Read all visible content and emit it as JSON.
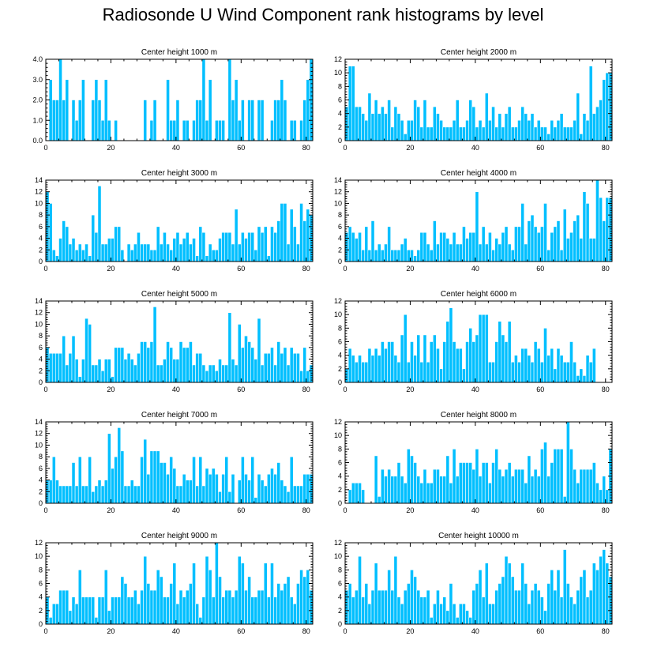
{
  "title": "Radiosonde U Wind Component rank histograms by level",
  "colors": {
    "bar": "#00bfff",
    "bar_edge": "#ffffff",
    "axis": "#000000",
    "background": "#ffffff"
  },
  "chart_data": [
    {
      "type": "bar",
      "title": "Center height 1000 m",
      "xlim": [
        0,
        82
      ],
      "ylim": [
        0,
        4
      ],
      "yticks": [
        0,
        1,
        2,
        3,
        4
      ],
      "ytick_labels": [
        "0.0",
        "1.0",
        "2.0",
        "3.0",
        "4.0"
      ],
      "xticks": [
        0,
        20,
        40,
        60,
        80
      ],
      "values": [
        0,
        3,
        2,
        2,
        4,
        2,
        3,
        0,
        2,
        1,
        2,
        3,
        0,
        0,
        2,
        3,
        2,
        1,
        3,
        1,
        0,
        1,
        0,
        0,
        0,
        0,
        0,
        0,
        0,
        0,
        2,
        0,
        1,
        2,
        0,
        0,
        0,
        3,
        1,
        1,
        2,
        0,
        1,
        1,
        0,
        1,
        2,
        2,
        4,
        1,
        3,
        0,
        1,
        1,
        1,
        0,
        4,
        2,
        3,
        1,
        2,
        0,
        2,
        2,
        0,
        2,
        2,
        0,
        0,
        1,
        2,
        2,
        3,
        2,
        0,
        1,
        1,
        0,
        1,
        2,
        3,
        4
      ]
    },
    {
      "type": "bar",
      "title": "Center height 2000 m",
      "xlim": [
        0,
        82
      ],
      "ylim": [
        0,
        12
      ],
      "yticks": [
        0,
        2,
        4,
        6,
        8,
        10,
        12
      ],
      "ytick_labels": [
        "0",
        "2",
        "4",
        "6",
        "8",
        "10",
        "12"
      ],
      "xticks": [
        0,
        20,
        40,
        60,
        80
      ],
      "values": [
        5,
        11,
        11,
        5,
        5,
        4,
        3,
        7,
        4,
        6,
        4,
        5,
        4,
        6,
        2,
        5,
        4,
        3,
        1,
        3,
        3,
        6,
        5,
        2,
        6,
        2,
        2,
        5,
        4,
        3,
        2,
        2,
        2,
        3,
        6,
        2,
        2,
        3,
        6,
        5,
        2,
        3,
        2,
        7,
        3,
        5,
        2,
        4,
        2,
        4,
        5,
        2,
        2,
        3,
        5,
        4,
        3,
        4,
        2,
        3,
        2,
        2,
        1,
        3,
        2,
        3,
        4,
        2,
        2,
        2,
        3,
        7,
        1,
        4,
        3,
        11,
        4,
        5,
        6,
        9,
        10,
        10
      ]
    },
    {
      "type": "bar",
      "title": "Center height 3000 m",
      "xlim": [
        0,
        82
      ],
      "ylim": [
        0,
        14
      ],
      "yticks": [
        0,
        2,
        4,
        6,
        8,
        10,
        12,
        14
      ],
      "ytick_labels": [
        "0",
        "2",
        "4",
        "6",
        "8",
        "10",
        "12",
        "14"
      ],
      "xticks": [
        0,
        20,
        40,
        60,
        80
      ],
      "values": [
        12,
        10,
        2,
        1,
        4,
        7,
        6,
        3,
        4,
        2,
        3,
        2,
        3,
        1,
        8,
        5,
        13,
        3,
        3,
        4,
        4,
        6,
        6,
        2,
        0,
        3,
        2,
        3,
        5,
        3,
        3,
        3,
        2,
        2,
        6,
        3,
        5,
        3,
        2,
        4,
        5,
        3,
        4,
        5,
        3,
        4,
        1,
        6,
        5,
        1,
        3,
        2,
        2,
        4,
        5,
        5,
        5,
        3,
        9,
        3,
        5,
        4,
        5,
        5,
        2,
        6,
        5,
        6,
        1,
        6,
        5,
        7,
        10,
        10,
        3,
        9,
        6,
        3,
        10,
        7,
        9,
        8
      ]
    },
    {
      "type": "bar",
      "title": "Center height 4000 m",
      "xlim": [
        0,
        82
      ],
      "ylim": [
        0,
        14
      ],
      "yticks": [
        0,
        2,
        4,
        6,
        8,
        10,
        12,
        14
      ],
      "ytick_labels": [
        "0",
        "2",
        "4",
        "6",
        "8",
        "10",
        "12",
        "14"
      ],
      "xticks": [
        0,
        20,
        40,
        60,
        80
      ],
      "values": [
        5,
        6,
        5,
        4,
        5,
        2,
        6,
        2,
        7,
        2,
        3,
        2,
        3,
        6,
        2,
        2,
        2,
        3,
        4,
        2,
        2,
        1,
        2,
        5,
        5,
        3,
        2,
        7,
        3,
        5,
        5,
        4,
        3,
        5,
        3,
        3,
        6,
        4,
        5,
        5,
        12,
        3,
        6,
        3,
        5,
        2,
        4,
        3,
        5,
        6,
        3,
        2,
        6,
        6,
        10,
        3,
        7,
        8,
        6,
        5,
        6,
        10,
        2,
        5,
        6,
        7,
        2,
        9,
        4,
        5,
        7,
        8,
        4,
        12,
        10,
        4,
        4,
        14,
        11,
        7,
        11,
        11
      ]
    },
    {
      "type": "bar",
      "title": "Center height 5000 m",
      "xlim": [
        0,
        82
      ],
      "ylim": [
        0,
        14
      ],
      "yticks": [
        0,
        2,
        4,
        6,
        8,
        10,
        12,
        14
      ],
      "ytick_labels": [
        "0",
        "2",
        "4",
        "6",
        "8",
        "10",
        "12",
        "14"
      ],
      "xticks": [
        0,
        20,
        40,
        60,
        80
      ],
      "values": [
        6,
        5,
        5,
        5,
        5,
        8,
        3,
        5,
        8,
        4,
        1,
        4,
        11,
        10,
        3,
        3,
        4,
        2,
        4,
        4,
        1,
        6,
        6,
        6,
        4,
        5,
        4,
        3,
        5,
        7,
        7,
        6,
        7,
        13,
        3,
        3,
        4,
        7,
        6,
        4,
        4,
        7,
        6,
        6,
        7,
        3,
        5,
        5,
        3,
        2,
        3,
        3,
        2,
        4,
        3,
        3,
        12,
        4,
        3,
        10,
        6,
        8,
        7,
        6,
        4,
        11,
        3,
        5,
        5,
        6,
        3,
        7,
        5,
        6,
        3,
        6,
        5,
        5,
        2,
        6,
        2,
        3
      ]
    },
    {
      "type": "bar",
      "title": "Center height 6000 m",
      "xlim": [
        0,
        82
      ],
      "ylim": [
        0,
        12
      ],
      "yticks": [
        0,
        2,
        4,
        6,
        8,
        10,
        12
      ],
      "ytick_labels": [
        "0",
        "2",
        "4",
        "6",
        "8",
        "10",
        "12"
      ],
      "xticks": [
        0,
        20,
        40,
        60,
        80
      ],
      "values": [
        2,
        5,
        4,
        3,
        4,
        3,
        3,
        5,
        4,
        5,
        4,
        6,
        5,
        6,
        6,
        4,
        3,
        7,
        10,
        3,
        6,
        4,
        7,
        3,
        7,
        3,
        6,
        7,
        5,
        2,
        6,
        9,
        11,
        6,
        5,
        5,
        2,
        6,
        8,
        6,
        7,
        10,
        10,
        10,
        3,
        3,
        6,
        9,
        7,
        6,
        9,
        3,
        4,
        3,
        5,
        5,
        4,
        3,
        6,
        5,
        3,
        8,
        4,
        5,
        2,
        5,
        4,
        3,
        3,
        6,
        3,
        1,
        2,
        1,
        4,
        3,
        5
      ]
    },
    {
      "type": "bar",
      "title": "Center height 7000 m",
      "xlim": [
        0,
        82
      ],
      "ylim": [
        0,
        14
      ],
      "yticks": [
        0,
        2,
        4,
        6,
        8,
        10,
        12,
        14
      ],
      "ytick_labels": [
        "0",
        "2",
        "4",
        "6",
        "8",
        "10",
        "12",
        "14"
      ],
      "xticks": [
        0,
        20,
        40,
        60,
        80
      ],
      "values": [
        4,
        4,
        8,
        4,
        3,
        3,
        3,
        3,
        7,
        3,
        8,
        3,
        3,
        8,
        2,
        3,
        4,
        3,
        4,
        12,
        6,
        8,
        13,
        9,
        3,
        3,
        4,
        3,
        3,
        8,
        11,
        5,
        9,
        9,
        9,
        7,
        7,
        5,
        8,
        6,
        3,
        3,
        5,
        4,
        4,
        8,
        3,
        8,
        3,
        6,
        5,
        6,
        5,
        2,
        5,
        8,
        2,
        5,
        0,
        4,
        8,
        5,
        4,
        8,
        1,
        5,
        4,
        3,
        5,
        6,
        5,
        7,
        4,
        3,
        2,
        8,
        3,
        3,
        3,
        5,
        5,
        5
      ]
    },
    {
      "type": "bar",
      "title": "Center height 8000 m",
      "xlim": [
        0,
        82
      ],
      "ylim": [
        0,
        12
      ],
      "yticks": [
        0,
        2,
        4,
        6,
        8,
        10,
        12
      ],
      "ytick_labels": [
        "0",
        "2",
        "4",
        "6",
        "8",
        "10",
        "12"
      ],
      "xticks": [
        0,
        20,
        40,
        60,
        80
      ],
      "values": [
        0,
        2,
        3,
        3,
        3,
        2,
        0,
        0,
        0,
        7,
        1,
        5,
        4,
        5,
        4,
        4,
        6,
        4,
        3,
        8,
        7,
        6,
        4,
        3,
        5,
        3,
        3,
        5,
        5,
        4,
        4,
        7,
        3,
        8,
        4,
        6,
        6,
        6,
        6,
        5,
        8,
        4,
        6,
        6,
        3,
        6,
        8,
        5,
        4,
        5,
        6,
        4,
        5,
        5,
        5,
        3,
        7,
        4,
        5,
        4,
        8,
        9,
        4,
        6,
        8,
        8,
        8,
        1,
        12,
        8,
        5,
        3,
        5,
        5,
        5,
        5,
        6,
        3,
        2,
        4,
        2,
        8
      ]
    },
    {
      "type": "bar",
      "title": "Center height 9000 m",
      "xlim": [
        0,
        82
      ],
      "ylim": [
        0,
        12
      ],
      "yticks": [
        0,
        2,
        4,
        6,
        8,
        10,
        12
      ],
      "ytick_labels": [
        "0",
        "2",
        "4",
        "6",
        "8",
        "10",
        "12"
      ],
      "xticks": [
        0,
        20,
        40,
        60,
        80
      ],
      "values": [
        4,
        1,
        3,
        3,
        5,
        5,
        5,
        2,
        4,
        3,
        8,
        4,
        4,
        4,
        4,
        1,
        4,
        4,
        8,
        2,
        4,
        4,
        4,
        7,
        6,
        4,
        4,
        5,
        3,
        5,
        10,
        6,
        5,
        5,
        8,
        7,
        4,
        4,
        6,
        9,
        3,
        5,
        4,
        5,
        6,
        9,
        3,
        1,
        4,
        10,
        8,
        4,
        12,
        7,
        4,
        5,
        5,
        4,
        5,
        10,
        9,
        5,
        7,
        4,
        4,
        5,
        5,
        9,
        4,
        9,
        4,
        6,
        5,
        6,
        7,
        4,
        3,
        6,
        8,
        7,
        8,
        5
      ]
    },
    {
      "type": "bar",
      "title": "Center height 10000 m",
      "xlim": [
        0,
        82
      ],
      "ylim": [
        0,
        12
      ],
      "yticks": [
        0,
        2,
        4,
        6,
        8,
        10,
        12
      ],
      "ytick_labels": [
        "0",
        "2",
        "4",
        "6",
        "8",
        "10",
        "12"
      ],
      "xticks": [
        0,
        20,
        40,
        60,
        80
      ],
      "values": [
        5,
        6,
        4,
        5,
        10,
        4,
        6,
        3,
        5,
        9,
        5,
        5,
        5,
        8,
        5,
        10,
        4,
        3,
        5,
        6,
        8,
        7,
        5,
        4,
        4,
        5,
        1,
        3,
        5,
        3,
        4,
        2,
        6,
        3,
        1,
        3,
        3,
        2,
        1,
        5,
        6,
        8,
        4,
        9,
        3,
        3,
        5,
        6,
        7,
        10,
        9,
        7,
        5,
        5,
        9,
        6,
        3,
        5,
        6,
        5,
        4,
        2,
        6,
        8,
        5,
        8,
        4,
        11,
        6,
        4,
        3,
        5,
        7,
        8,
        4,
        5,
        9,
        8,
        10,
        11,
        9,
        7
      ]
    }
  ]
}
